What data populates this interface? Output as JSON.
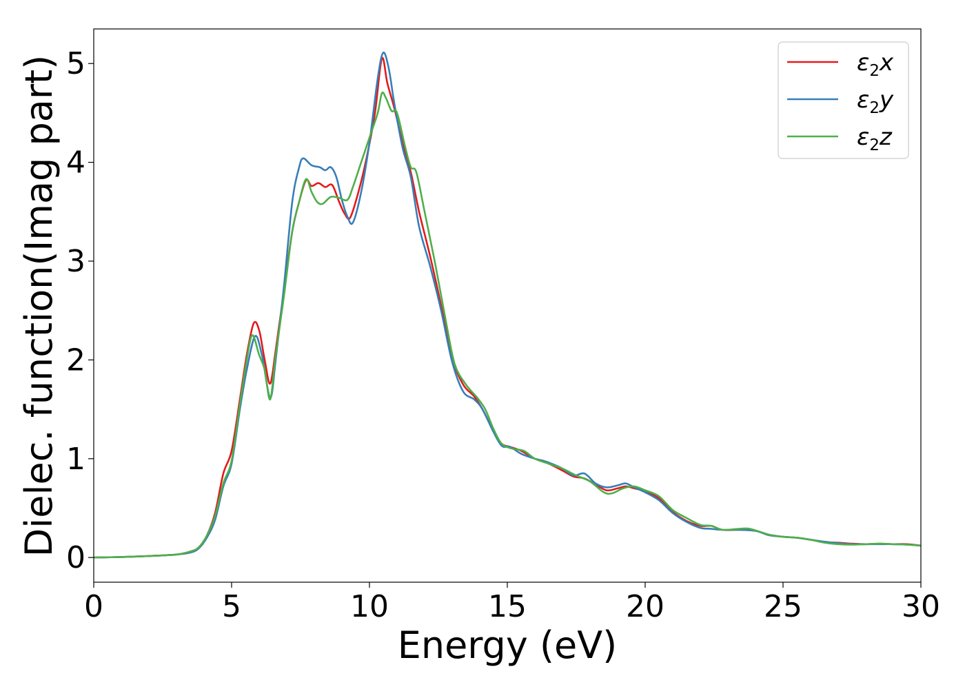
{
  "chart_data": {
    "type": "line",
    "xlabel": "Energy (eV)",
    "ylabel": "Dielec. function(Imag part)",
    "xlim": [
      0,
      30
    ],
    "ylim": [
      -0.25,
      5.35
    ],
    "xticks": [
      0,
      5,
      10,
      15,
      20,
      25,
      30
    ],
    "yticks": [
      0,
      1,
      2,
      3,
      4,
      5
    ],
    "xtick_labels": [
      "0",
      "5",
      "10",
      "15",
      "20",
      "25",
      "30"
    ],
    "ytick_labels": [
      "0",
      "1",
      "2",
      "3",
      "4",
      "5"
    ],
    "grid": false,
    "legend_position": "top-right",
    "series": [
      {
        "name": "ε2x",
        "legend": {
          "base": "ε",
          "sub": "2",
          "var": "x"
        },
        "color": "#e41a1c",
        "points": [
          [
            0,
            0
          ],
          [
            1,
            0.005
          ],
          [
            2,
            0.015
          ],
          [
            3,
            0.03
          ],
          [
            3.5,
            0.06
          ],
          [
            3.8,
            0.1
          ],
          [
            4.1,
            0.22
          ],
          [
            4.4,
            0.45
          ],
          [
            4.7,
            0.85
          ],
          [
            5,
            1.08
          ],
          [
            5.3,
            1.6
          ],
          [
            5.55,
            2.05
          ],
          [
            5.8,
            2.37
          ],
          [
            6.0,
            2.3
          ],
          [
            6.2,
            2.0
          ],
          [
            6.4,
            1.76
          ],
          [
            6.6,
            2.1
          ],
          [
            6.9,
            2.7
          ],
          [
            7.2,
            3.3
          ],
          [
            7.45,
            3.6
          ],
          [
            7.7,
            3.82
          ],
          [
            7.9,
            3.76
          ],
          [
            8.15,
            3.79
          ],
          [
            8.4,
            3.75
          ],
          [
            8.65,
            3.77
          ],
          [
            8.9,
            3.6
          ],
          [
            9.1,
            3.48
          ],
          [
            9.3,
            3.44
          ],
          [
            9.6,
            3.7
          ],
          [
            9.9,
            4.05
          ],
          [
            10.2,
            4.5
          ],
          [
            10.45,
            5.05
          ],
          [
            10.65,
            4.8
          ],
          [
            10.9,
            4.55
          ],
          [
            11.2,
            4.2
          ],
          [
            11.5,
            3.9
          ],
          [
            11.8,
            3.5
          ],
          [
            12.2,
            3.05
          ],
          [
            12.6,
            2.55
          ],
          [
            13.0,
            2.02
          ],
          [
            13.4,
            1.75
          ],
          [
            13.8,
            1.63
          ],
          [
            14.1,
            1.5
          ],
          [
            14.5,
            1.28
          ],
          [
            14.8,
            1.15
          ],
          [
            15.1,
            1.12
          ],
          [
            15.5,
            1.08
          ],
          [
            16.0,
            1.0
          ],
          [
            16.5,
            0.95
          ],
          [
            17.0,
            0.88
          ],
          [
            17.4,
            0.82
          ],
          [
            17.8,
            0.8
          ],
          [
            18.2,
            0.74
          ],
          [
            18.6,
            0.68
          ],
          [
            19.0,
            0.7
          ],
          [
            19.3,
            0.72
          ],
          [
            19.6,
            0.7
          ],
          [
            20.0,
            0.67
          ],
          [
            20.5,
            0.6
          ],
          [
            21.0,
            0.46
          ],
          [
            21.5,
            0.37
          ],
          [
            22.0,
            0.32
          ],
          [
            22.4,
            0.32
          ],
          [
            22.8,
            0.28
          ],
          [
            23.4,
            0.28
          ],
          [
            24.0,
            0.27
          ],
          [
            24.5,
            0.23
          ],
          [
            25.0,
            0.21
          ],
          [
            25.5,
            0.2
          ],
          [
            26.0,
            0.18
          ],
          [
            26.5,
            0.155
          ],
          [
            27.0,
            0.15
          ],
          [
            27.5,
            0.14
          ],
          [
            28.0,
            0.135
          ],
          [
            28.5,
            0.14
          ],
          [
            29.0,
            0.135
          ],
          [
            29.5,
            0.135
          ],
          [
            30,
            0.12
          ]
        ]
      },
      {
        "name": "ε2y",
        "legend": {
          "base": "ε",
          "sub": "2",
          "var": "y"
        },
        "color": "#377eb8",
        "points": [
          [
            0,
            0
          ],
          [
            1,
            0.005
          ],
          [
            2,
            0.015
          ],
          [
            3,
            0.03
          ],
          [
            3.5,
            0.05
          ],
          [
            3.8,
            0.09
          ],
          [
            4.1,
            0.2
          ],
          [
            4.4,
            0.38
          ],
          [
            4.7,
            0.72
          ],
          [
            5,
            0.95
          ],
          [
            5.3,
            1.5
          ],
          [
            5.55,
            1.9
          ],
          [
            5.85,
            2.24
          ],
          [
            6.1,
            2.05
          ],
          [
            6.4,
            1.62
          ],
          [
            6.6,
            2.0
          ],
          [
            6.9,
            2.75
          ],
          [
            7.2,
            3.6
          ],
          [
            7.45,
            3.95
          ],
          [
            7.6,
            4.04
          ],
          [
            7.9,
            3.97
          ],
          [
            8.2,
            3.95
          ],
          [
            8.4,
            3.92
          ],
          [
            8.6,
            3.95
          ],
          [
            8.8,
            3.85
          ],
          [
            9.0,
            3.62
          ],
          [
            9.2,
            3.45
          ],
          [
            9.4,
            3.39
          ],
          [
            9.7,
            3.7
          ],
          [
            10.0,
            4.2
          ],
          [
            10.3,
            4.85
          ],
          [
            10.5,
            5.11
          ],
          [
            10.7,
            4.95
          ],
          [
            10.9,
            4.6
          ],
          [
            11.2,
            4.15
          ],
          [
            11.5,
            3.85
          ],
          [
            11.8,
            3.35
          ],
          [
            12.2,
            2.95
          ],
          [
            12.6,
            2.5
          ],
          [
            13.0,
            1.98
          ],
          [
            13.4,
            1.68
          ],
          [
            13.8,
            1.6
          ],
          [
            14.1,
            1.5
          ],
          [
            14.5,
            1.27
          ],
          [
            14.8,
            1.13
          ],
          [
            15.1,
            1.12
          ],
          [
            15.5,
            1.05
          ],
          [
            16.0,
            1.0
          ],
          [
            16.3,
            0.98
          ],
          [
            16.6,
            0.95
          ],
          [
            17.0,
            0.9
          ],
          [
            17.4,
            0.83
          ],
          [
            17.8,
            0.85
          ],
          [
            18.2,
            0.75
          ],
          [
            18.6,
            0.71
          ],
          [
            19.0,
            0.73
          ],
          [
            19.3,
            0.75
          ],
          [
            19.6,
            0.71
          ],
          [
            20.0,
            0.66
          ],
          [
            20.5,
            0.58
          ],
          [
            21.0,
            0.45
          ],
          [
            21.5,
            0.36
          ],
          [
            22.0,
            0.3
          ],
          [
            22.4,
            0.29
          ],
          [
            22.8,
            0.28
          ],
          [
            23.4,
            0.28
          ],
          [
            24.0,
            0.27
          ],
          [
            24.5,
            0.225
          ],
          [
            25.0,
            0.21
          ],
          [
            25.5,
            0.2
          ],
          [
            26.0,
            0.18
          ],
          [
            26.5,
            0.16
          ],
          [
            27.0,
            0.145
          ],
          [
            27.5,
            0.135
          ],
          [
            28.0,
            0.135
          ],
          [
            28.5,
            0.135
          ],
          [
            29.0,
            0.135
          ],
          [
            29.5,
            0.13
          ],
          [
            30,
            0.12
          ]
        ]
      },
      {
        "name": "ε2z",
        "legend": {
          "base": "ε",
          "sub": "2",
          "var": "z"
        },
        "color": "#4daf4a",
        "points": [
          [
            0,
            0
          ],
          [
            1,
            0.005
          ],
          [
            2,
            0.015
          ],
          [
            3,
            0.03
          ],
          [
            3.5,
            0.06
          ],
          [
            3.8,
            0.1
          ],
          [
            4.1,
            0.22
          ],
          [
            4.4,
            0.42
          ],
          [
            4.7,
            0.75
          ],
          [
            5,
            0.98
          ],
          [
            5.3,
            1.55
          ],
          [
            5.55,
            2.0
          ],
          [
            5.75,
            2.25
          ],
          [
            6.0,
            2.05
          ],
          [
            6.2,
            1.9
          ],
          [
            6.4,
            1.6
          ],
          [
            6.6,
            2.05
          ],
          [
            6.9,
            2.65
          ],
          [
            7.2,
            3.3
          ],
          [
            7.45,
            3.6
          ],
          [
            7.7,
            3.83
          ],
          [
            7.9,
            3.7
          ],
          [
            8.1,
            3.6
          ],
          [
            8.3,
            3.58
          ],
          [
            8.6,
            3.65
          ],
          [
            8.9,
            3.64
          ],
          [
            9.2,
            3.62
          ],
          [
            9.4,
            3.75
          ],
          [
            9.7,
            4.0
          ],
          [
            10.0,
            4.25
          ],
          [
            10.3,
            4.5
          ],
          [
            10.45,
            4.7
          ],
          [
            10.6,
            4.65
          ],
          [
            10.8,
            4.52
          ],
          [
            11.0,
            4.5
          ],
          [
            11.3,
            4.15
          ],
          [
            11.5,
            3.95
          ],
          [
            11.7,
            3.9
          ],
          [
            12.0,
            3.5
          ],
          [
            12.4,
            2.95
          ],
          [
            12.8,
            2.35
          ],
          [
            13.1,
            1.95
          ],
          [
            13.5,
            1.75
          ],
          [
            13.9,
            1.62
          ],
          [
            14.2,
            1.5
          ],
          [
            14.5,
            1.3
          ],
          [
            14.8,
            1.15
          ],
          [
            15.2,
            1.1
          ],
          [
            15.6,
            1.08
          ],
          [
            16.0,
            1.0
          ],
          [
            16.5,
            0.95
          ],
          [
            17.0,
            0.9
          ],
          [
            17.5,
            0.83
          ],
          [
            18.0,
            0.77
          ],
          [
            18.5,
            0.66
          ],
          [
            18.8,
            0.65
          ],
          [
            19.2,
            0.7
          ],
          [
            19.6,
            0.72
          ],
          [
            20.0,
            0.68
          ],
          [
            20.5,
            0.62
          ],
          [
            21.0,
            0.48
          ],
          [
            21.5,
            0.4
          ],
          [
            22.0,
            0.33
          ],
          [
            22.4,
            0.32
          ],
          [
            22.8,
            0.28
          ],
          [
            23.4,
            0.29
          ],
          [
            23.8,
            0.29
          ],
          [
            24.5,
            0.23
          ],
          [
            25.0,
            0.21
          ],
          [
            25.5,
            0.2
          ],
          [
            26.0,
            0.18
          ],
          [
            26.5,
            0.15
          ],
          [
            27.0,
            0.135
          ],
          [
            27.5,
            0.13
          ],
          [
            28.0,
            0.135
          ],
          [
            28.5,
            0.14
          ],
          [
            29.0,
            0.135
          ],
          [
            29.5,
            0.13
          ],
          [
            30,
            0.12
          ]
        ]
      }
    ]
  }
}
